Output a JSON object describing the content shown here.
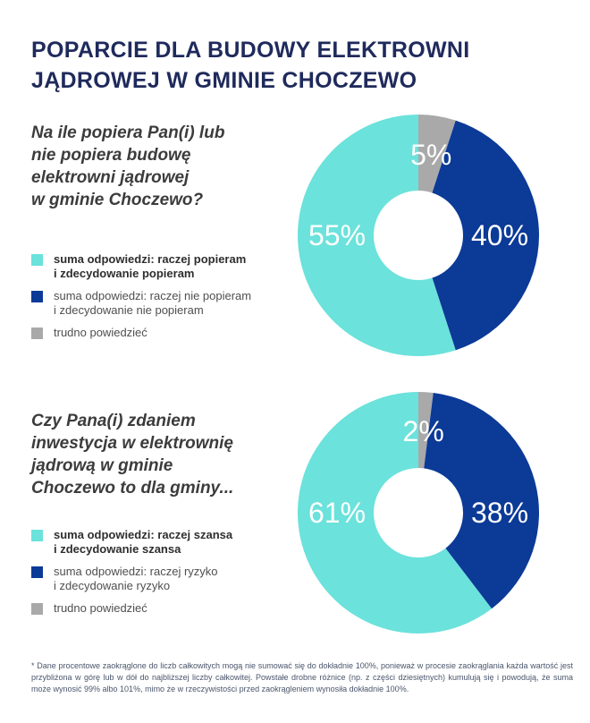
{
  "title": "POPARCIE DLA BUDOWY ELEKTROWNI\nJĄDROWEJ W GMINIE CHOCZEWO",
  "colors": {
    "title": "#1F2A5C",
    "question": "#3C3C3C",
    "legend_text": "#4F4F4F",
    "legend_text_bold": "#2E2E2E",
    "footnote": "#4A556B",
    "turquoise": "#6BE2DB",
    "navy": "#0B3A97",
    "gray": "#A9A9A9",
    "label_text": "#FFFFFF"
  },
  "sections": [
    {
      "question": "Na ile popiera Pan(i) lub\nnie popiera budowę\nelektrowni jądrowej\nw gminie Choczewo?"
    },
    {
      "question": "Czy Pana(i) zdaniem\ninwestycja w elektrownię\njądrową w gminie\nChoczewo to dla gminy..."
    }
  ],
  "chart_data": [
    {
      "type": "donut",
      "title": "Na ile popiera Pan(i) lub nie popiera budowę elektrowni jądrowej w gminie Choczewo?",
      "legend_position": "left",
      "hole_ratio": 0.37,
      "slices": [
        {
          "label": "suma odpowiedzi: raczej popieram\ni zdecydowanie popieram",
          "value": 55,
          "display": "55%",
          "color": "#6BE2DB"
        },
        {
          "label": "suma odpowiedzi: raczej nie popieram\ni zdecydowanie nie popieram",
          "value": 40,
          "display": "40%",
          "color": "#0B3A97"
        },
        {
          "label": "trudno powiedzieć",
          "value": 5,
          "display": "5%",
          "color": "#A9A9A9"
        }
      ]
    },
    {
      "type": "donut",
      "title": "Czy Pana(i) zdaniem inwestycja w elektrownię jądrową w gminie Choczewo to dla gminy...",
      "legend_position": "left",
      "hole_ratio": 0.37,
      "slices": [
        {
          "label": "suma odpowiedzi: raczej szansa\ni zdecydowanie szansa",
          "value": 61,
          "display": "61%",
          "color": "#6BE2DB"
        },
        {
          "label": "suma odpowiedzi: raczej ryzyko\ni zdecydowanie ryzyko",
          "value": 38,
          "display": "38%",
          "color": "#0B3A97"
        },
        {
          "label": "trudno powiedzieć",
          "value": 2,
          "display": "2%",
          "color": "#A9A9A9"
        }
      ]
    }
  ],
  "footnote": "* Dane procentowe zaokrąglone do liczb całkowitych mogą nie sumować się do dokładnie 100%, ponieważ w procesie zaokrąglania każda wartość jest przybliżona w górę lub w dół do najbliższej liczby całkowitej. Powstałe drobne różnice (np. z części dziesiętnych) kumulują się i powodują, że suma może wynosić 99% albo 101%, mimo że w rzeczywistości przed zaokrągleniem wynosiła dokładnie 100%."
}
